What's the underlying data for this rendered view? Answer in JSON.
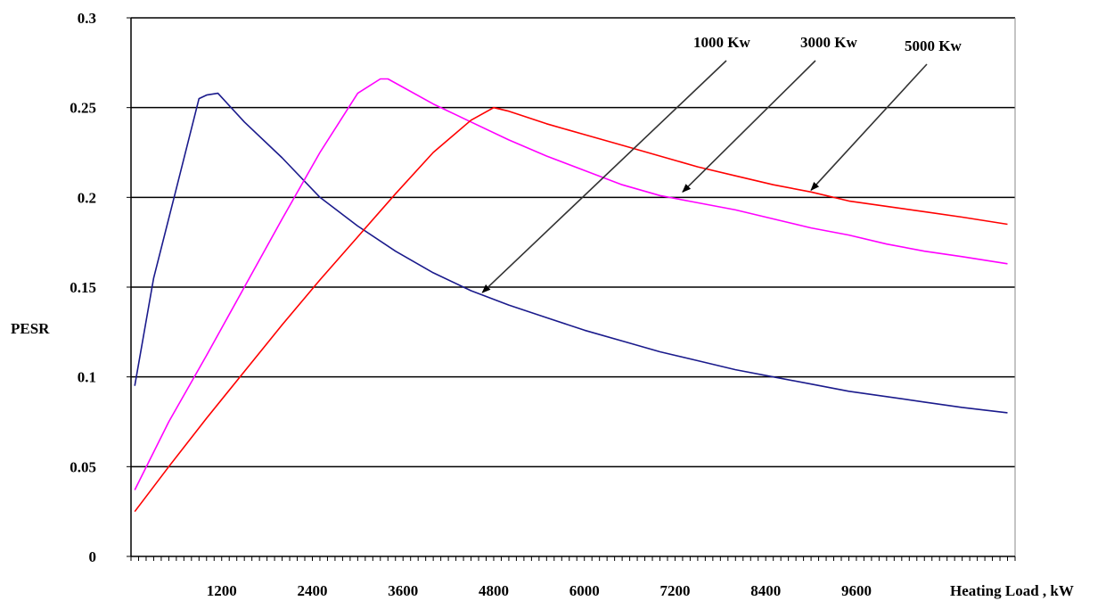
{
  "chart_data": {
    "type": "line",
    "title": "",
    "xlabel": "Heating Load , kW",
    "ylabel": "PESR",
    "xlim": [
      0,
      11700
    ],
    "ylim": [
      0,
      0.3
    ],
    "x_tick_labels": [
      "1200",
      "2400",
      "3600",
      "4800",
      "6000",
      "7200",
      "8400",
      "9600"
    ],
    "x_tick_values": [
      1200,
      2400,
      3600,
      4800,
      6000,
      7200,
      8400,
      9600
    ],
    "y_tick_labels": [
      "0",
      "0.05",
      "0.1",
      "0.15",
      "0.2",
      "0.25",
      "0.3"
    ],
    "y_tick_values": [
      0,
      0.05,
      0.1,
      0.15,
      0.2,
      0.25,
      0.3
    ],
    "grid": "horizontal",
    "series": [
      {
        "name": "1000 Kw",
        "color": "#1a1a8c",
        "x": [
          50,
          300,
          600,
          900,
          1000,
          1150,
          1500,
          2000,
          2500,
          3000,
          3500,
          4000,
          4500,
          5000,
          5500,
          6000,
          6500,
          7000,
          7500,
          8000,
          8500,
          9000,
          9500,
          10000,
          10500,
          11000,
          11600
        ],
        "y": [
          0.095,
          0.155,
          0.205,
          0.255,
          0.257,
          0.258,
          0.242,
          0.222,
          0.2,
          0.184,
          0.17,
          0.158,
          0.148,
          0.14,
          0.133,
          0.126,
          0.12,
          0.114,
          0.109,
          0.104,
          0.1,
          0.096,
          0.092,
          0.089,
          0.086,
          0.083,
          0.08
        ]
      },
      {
        "name": "3000 Kw",
        "color": "#ff00ff",
        "x": [
          50,
          500,
          1000,
          1500,
          2000,
          2500,
          3000,
          3300,
          3400,
          4000,
          4500,
          5000,
          5500,
          6000,
          6500,
          7000,
          7500,
          8000,
          8500,
          9000,
          9500,
          10000,
          10500,
          11000,
          11600
        ],
        "y": [
          0.037,
          0.075,
          0.112,
          0.15,
          0.188,
          0.225,
          0.258,
          0.266,
          0.266,
          0.252,
          0.242,
          0.232,
          0.223,
          0.215,
          0.207,
          0.201,
          0.197,
          0.193,
          0.188,
          0.183,
          0.179,
          0.174,
          0.17,
          0.167,
          0.163
        ]
      },
      {
        "name": "5000 Kw",
        "color": "#ff0000",
        "x": [
          50,
          500,
          1000,
          1500,
          2000,
          2500,
          3000,
          3500,
          4000,
          4500,
          4800,
          5000,
          5500,
          6000,
          6500,
          7000,
          7500,
          8000,
          8500,
          9000,
          9500,
          10000,
          10500,
          11000,
          11600
        ],
        "y": [
          0.025,
          0.05,
          0.077,
          0.103,
          0.129,
          0.154,
          0.178,
          0.202,
          0.225,
          0.243,
          0.25,
          0.248,
          0.241,
          0.235,
          0.229,
          0.223,
          0.217,
          0.212,
          0.207,
          0.203,
          0.198,
          0.195,
          0.192,
          0.189,
          0.185
        ]
      }
    ],
    "annotations": [
      {
        "text": "1000 Kw",
        "target_series": "1000 Kw",
        "target_x": 4650,
        "target_y": 0.147
      },
      {
        "text": "3000 Kw",
        "target_series": "3000 Kw",
        "target_x": 7300,
        "target_y": 0.203
      },
      {
        "text": "5000 Kw",
        "target_series": "5000 Kw",
        "target_x": 9000,
        "target_y": 0.204
      }
    ]
  }
}
